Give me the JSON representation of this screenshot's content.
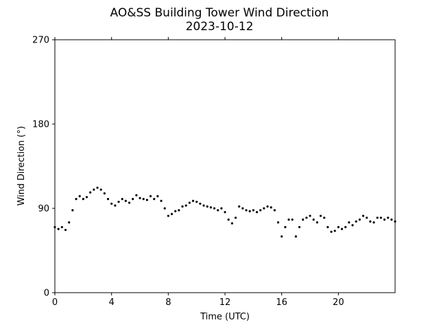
{
  "chart_data": {
    "type": "scatter",
    "title": "AO&SS Building Tower Wind Direction",
    "subtitle": "2023-10-12",
    "xlabel": "Time (UTC)",
    "ylabel": "Wind Direction (°)",
    "xlim": [
      0,
      24
    ],
    "ylim": [
      0,
      270
    ],
    "xticks": [
      0,
      4,
      8,
      12,
      16,
      20
    ],
    "yticks": [
      0,
      90,
      180,
      270
    ],
    "grid": false,
    "marker_color": "#000000",
    "series": [
      {
        "x": [
          0.0,
          0.25,
          0.5,
          0.75,
          1.0,
          1.25,
          1.5,
          1.75,
          2.0,
          2.25,
          2.5,
          2.75,
          3.0,
          3.25,
          3.5,
          3.75,
          4.0,
          4.25,
          4.5,
          4.75,
          5.0,
          5.25,
          5.5,
          5.75,
          6.0,
          6.25,
          6.5,
          6.75,
          7.0,
          7.25,
          7.5,
          7.75,
          8.0,
          8.25,
          8.5,
          8.75,
          9.0,
          9.25,
          9.5,
          9.75,
          10.0,
          10.25,
          10.5,
          10.75,
          11.0,
          11.25,
          11.5,
          11.75,
          12.0,
          12.25,
          12.5,
          12.75,
          13.0,
          13.25,
          13.5,
          13.75,
          14.0,
          14.25,
          14.5,
          14.75,
          15.0,
          15.25,
          15.5,
          15.75,
          16.0,
          16.25,
          16.5,
          16.75,
          17.0,
          17.25,
          17.5,
          17.75,
          18.0,
          18.25,
          18.5,
          18.75,
          19.0,
          19.25,
          19.5,
          19.75,
          20.0,
          20.25,
          20.5,
          20.75,
          21.0,
          21.25,
          21.5,
          21.75,
          22.0,
          22.25,
          22.5,
          22.75,
          23.0,
          23.25,
          23.5,
          23.75,
          24.0
        ],
        "values": [
          70,
          68,
          70,
          67,
          75,
          88,
          100,
          103,
          100,
          102,
          107,
          110,
          112,
          110,
          106,
          100,
          95,
          93,
          97,
          100,
          98,
          96,
          100,
          104,
          101,
          100,
          99,
          103,
          100,
          103,
          98,
          90,
          82,
          84,
          87,
          88,
          92,
          93,
          96,
          98,
          97,
          95,
          93,
          92,
          91,
          90,
          88,
          90,
          86,
          78,
          74,
          80,
          92,
          90,
          88,
          87,
          88,
          86,
          88,
          90,
          92,
          91,
          88,
          75,
          60,
          70,
          78,
          78,
          60,
          70,
          78,
          80,
          82,
          78,
          75,
          82,
          80,
          70,
          65,
          66,
          70,
          68,
          70,
          75,
          72,
          76,
          78,
          82,
          80,
          76,
          75,
          80,
          80,
          78,
          80,
          78,
          76
        ]
      }
    ]
  }
}
